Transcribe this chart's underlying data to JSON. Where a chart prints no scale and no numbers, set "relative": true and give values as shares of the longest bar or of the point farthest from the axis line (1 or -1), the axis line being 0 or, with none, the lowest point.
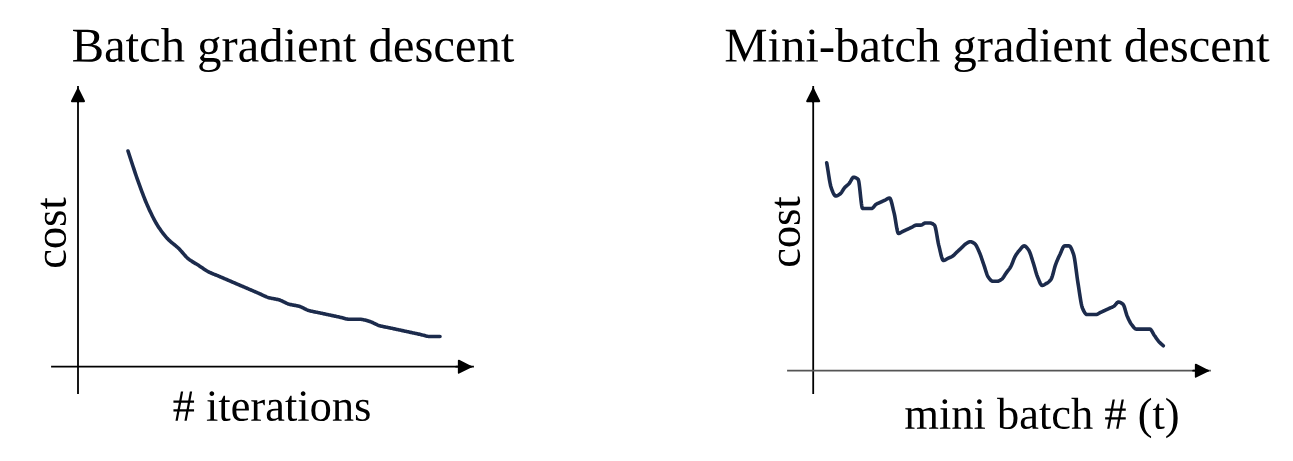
{
  "chart_data": [
    {
      "type": "line",
      "title": "Batch gradient descent",
      "xlabel": "# iterations",
      "ylabel": "cost",
      "relative": true,
      "line_style": "solid",
      "categories": [
        null,
        null,
        null,
        null,
        null,
        null,
        null,
        null,
        null,
        null,
        null,
        null,
        null,
        null,
        null,
        null,
        null,
        null,
        null,
        null,
        null,
        null,
        null,
        null,
        null,
        null,
        null,
        null,
        null,
        null,
        null,
        null,
        null,
        null,
        null,
        null,
        null
      ],
      "series": [
        {
          "color": "#1c2b4c",
          "values": [
            null,
            null,
            null,
            null,
            null,
            1.0,
            0.86,
            0.74,
            0.65,
            0.59,
            0.55,
            0.5,
            0.47,
            0.44,
            0.42,
            0.4,
            0.38,
            0.36,
            0.34,
            0.32,
            0.31,
            0.29,
            0.28,
            0.26,
            0.25,
            0.24,
            0.23,
            0.22,
            0.22,
            0.21,
            0.19,
            0.18,
            0.17,
            0.16,
            0.15,
            0.14,
            0.14
          ]
        }
      ]
    },
    {
      "type": "line",
      "title": "Mini-batch gradient descent",
      "xlabel": "mini batch # (t)",
      "ylabel": "cost",
      "relative": true,
      "line_style": "solid",
      "categories": [
        null,
        null,
        null,
        null,
        null,
        null,
        null,
        null,
        null,
        null,
        null,
        null,
        null,
        null,
        null,
        null,
        null,
        null,
        null,
        null,
        null,
        null,
        null,
        null,
        null,
        null,
        null,
        null,
        null,
        null,
        null,
        null,
        null,
        null,
        null,
        null,
        null,
        null,
        null,
        null,
        null,
        null,
        null,
        null,
        null,
        null,
        null,
        null,
        null,
        null,
        null,
        null,
        null,
        null,
        null,
        null,
        null,
        null,
        null,
        null,
        null,
        null,
        null,
        null,
        null,
        null,
        null,
        null,
        null,
        null,
        null,
        null,
        null,
        null,
        null,
        null,
        null,
        null,
        null
      ],
      "series": [
        {
          "color": "#1c2b4c",
          "values": [
            null,
            null,
            null,
            1.0,
            0.88,
            0.84,
            0.85,
            0.88,
            0.9,
            0.93,
            0.92,
            0.78,
            0.78,
            0.78,
            0.8,
            0.81,
            0.82,
            0.83,
            0.76,
            0.66,
            0.67,
            0.68,
            0.69,
            0.7,
            0.7,
            0.71,
            0.71,
            0.7,
            0.6,
            0.53,
            0.54,
            0.55,
            0.57,
            0.59,
            0.61,
            0.62,
            0.61,
            0.57,
            0.51,
            0.45,
            0.43,
            0.43,
            0.44,
            0.47,
            0.5,
            0.55,
            0.58,
            0.6,
            0.58,
            0.52,
            0.45,
            0.41,
            0.42,
            0.44,
            0.51,
            0.56,
            0.6,
            0.6,
            0.56,
            0.42,
            0.3,
            0.27,
            0.27,
            0.27,
            0.28,
            0.29,
            0.3,
            0.31,
            0.33,
            0.32,
            0.26,
            0.22,
            0.2,
            0.2,
            0.2,
            0.2,
            0.17,
            0.14,
            0.12
          ]
        }
      ]
    }
  ]
}
